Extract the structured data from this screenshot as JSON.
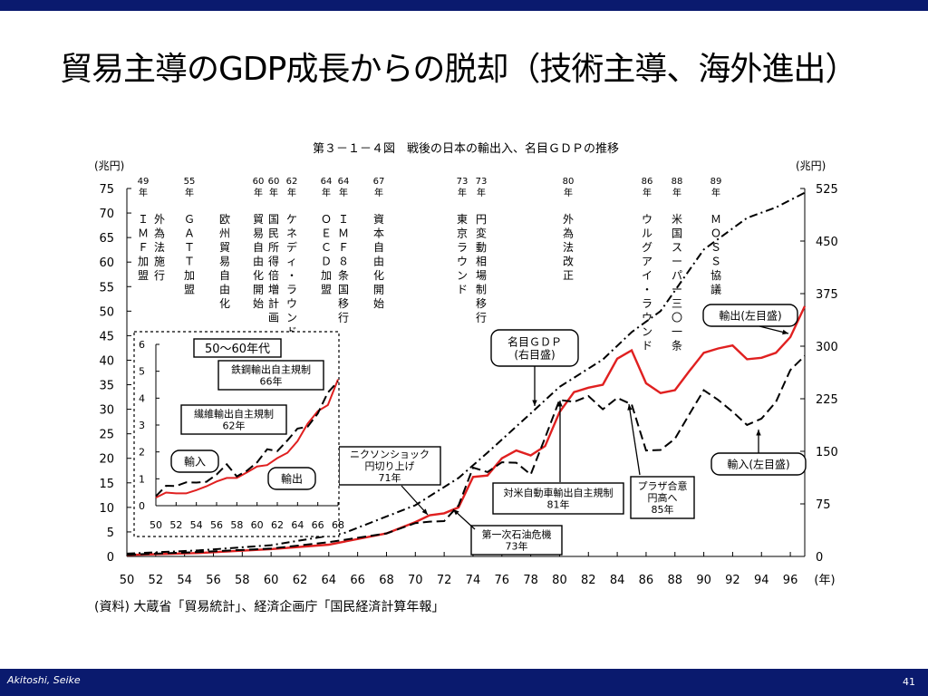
{
  "slide": {
    "title": "貿易主導のGDP成長からの脱却（技術主導、海外進出）",
    "footer_author": "Akitoshi, Seike",
    "page_number": "41"
  },
  "chart_data": {
    "type": "line",
    "title": "第３－１－４図　戦後の日本の輸出入、名目ＧＤＰの推移",
    "source": "(資料)  大蔵省「貿易統計」、経済企画庁「国民経済計算年報」",
    "left_axis_unit": "(兆円)",
    "right_axis_unit": "(兆円)",
    "x_unit": "(年)",
    "xlim": [
      1950,
      1997
    ],
    "ylim_left": [
      0,
      75
    ],
    "ylim_right": [
      0,
      525
    ],
    "x_ticks": [
      "50",
      "52",
      "54",
      "56",
      "58",
      "60",
      "62",
      "64",
      "66",
      "68",
      "70",
      "72",
      "74",
      "76",
      "78",
      "80",
      "82",
      "84",
      "86",
      "88",
      "90",
      "92",
      "94",
      "96"
    ],
    "y_ticks_left": [
      "0",
      "5",
      "10",
      "15",
      "20",
      "25",
      "30",
      "35",
      "40",
      "45",
      "50",
      "55",
      "60",
      "65",
      "70",
      "75"
    ],
    "y_ticks_right": [
      "0",
      "75",
      "150",
      "225",
      "300",
      "375",
      "450",
      "525"
    ],
    "series": [
      {
        "name": "輸出(左目盛)",
        "axis": "left",
        "color": "#e02020",
        "style": "solid",
        "x": [
          1950,
          1955,
          1960,
          1964,
          1968,
          1970,
          1971,
          1972,
          1973,
          1974,
          1975,
          1976,
          1977,
          1978,
          1979,
          1980,
          1981,
          1982,
          1983,
          1984,
          1985,
          1986,
          1987,
          1988,
          1989,
          1990,
          1991,
          1992,
          1993,
          1994,
          1995,
          1996,
          1997
        ],
        "y": [
          0.3,
          0.7,
          1.5,
          2.4,
          4.7,
          7,
          8.4,
          8.8,
          10,
          16.2,
          16.5,
          20,
          21.6,
          20.6,
          22.5,
          29.4,
          33.5,
          34.4,
          35,
          40.3,
          42,
          35.3,
          33.3,
          33.9,
          37.8,
          41.5,
          42.4,
          43,
          40.2,
          40.5,
          41.5,
          44.7,
          51
        ]
      },
      {
        "name": "輸入(左目盛)",
        "axis": "left",
        "color": "#000000",
        "style": "dash",
        "x": [
          1950,
          1955,
          1960,
          1964,
          1968,
          1970,
          1971,
          1972,
          1973,
          1974,
          1975,
          1976,
          1977,
          1978,
          1979,
          1980,
          1981,
          1982,
          1983,
          1984,
          1985,
          1986,
          1987,
          1988,
          1989,
          1990,
          1991,
          1992,
          1993,
          1994,
          1995,
          1996,
          1997
        ],
        "y": [
          0.35,
          0.9,
          1.6,
          2.9,
          4.7,
          6.8,
          7.1,
          7.2,
          10.4,
          18.1,
          17.2,
          19.2,
          19.1,
          16.7,
          24.2,
          31.9,
          31.5,
          32.7,
          30,
          32.3,
          31,
          21.6,
          21.7,
          24,
          29,
          33.9,
          31.9,
          29.5,
          26.8,
          28.1,
          31.5,
          38,
          40.9
        ]
      },
      {
        "name": "名目ＧＤＰ(右目盛)",
        "axis": "right",
        "color": "#000000",
        "style": "dashdot",
        "x": [
          1950,
          1955,
          1960,
          1965,
          1970,
          1973,
          1975,
          1978,
          1980,
          1983,
          1985,
          1987,
          1990,
          1993,
          1995,
          1997
        ],
        "y": [
          4,
          8.6,
          16,
          32.9,
          73,
          112,
          148,
          204,
          242,
          281,
          320,
          350,
          438,
          483,
          498,
          519
        ]
      }
    ],
    "inset": {
      "label": "50～60年代",
      "x_ticks": [
        "50",
        "52",
        "54",
        "56",
        "58",
        "60",
        "62",
        "64",
        "66",
        "68"
      ],
      "y_ticks": [
        "0",
        "1",
        "2",
        "3",
        "4",
        "5",
        "6"
      ],
      "series": [
        {
          "name": "輸出",
          "color": "#e02020",
          "style": "solid",
          "x": [
            1950,
            1951,
            1952,
            1953,
            1954,
            1955,
            1956,
            1957,
            1958,
            1959,
            1960,
            1961,
            1962,
            1963,
            1964,
            1965,
            1966,
            1967,
            1968
          ],
          "y": [
            0.3,
            0.49,
            0.46,
            0.46,
            0.58,
            0.72,
            0.9,
            1.03,
            1.03,
            1.24,
            1.46,
            1.51,
            1.77,
            1.97,
            2.4,
            3.05,
            3.52,
            3.74,
            4.7
          ]
        },
        {
          "name": "輸入",
          "color": "#000000",
          "style": "dash",
          "x": [
            1950,
            1951,
            1952,
            1953,
            1954,
            1955,
            1956,
            1957,
            1958,
            1959,
            1960,
            1961,
            1962,
            1963,
            1964,
            1965,
            1966,
            1967,
            1968
          ],
          "y": [
            0.35,
            0.74,
            0.73,
            0.87,
            0.86,
            0.89,
            1.16,
            1.54,
            1.09,
            1.3,
            1.61,
            2.1,
            2.03,
            2.43,
            2.87,
            2.94,
            3.43,
            4.21,
            4.62
          ]
        }
      ],
      "annotations": [
        {
          "text": [
            "鉄鋼輸出自主規制",
            "66年"
          ]
        },
        {
          "text": [
            "繊維輸出自主規制",
            "62年"
          ]
        },
        {
          "text": [
            "輸入"
          ]
        },
        {
          "text": [
            "輸出"
          ]
        }
      ]
    },
    "events": [
      {
        "year": "49\n年",
        "label": "ＩＭＦ加盟"
      },
      {
        "year": "",
        "label": "外為法施行"
      },
      {
        "year": "55\n年",
        "label": "ＧＡＴＴ加盟"
      },
      {
        "year": "",
        "label": "欧州貿易自由化"
      },
      {
        "year": "60\n年",
        "label": "貿易自由化開始"
      },
      {
        "year": "60\n年",
        "label": "国民所得倍増計画"
      },
      {
        "year": "62\n年",
        "label": "ケネディ・ラウンド"
      },
      {
        "year": "64\n年",
        "label": "ＯＥＣＤ加盟"
      },
      {
        "year": "64\n年",
        "label": "ＩＭＦ８条国移行"
      },
      {
        "year": "67\n年",
        "label": "資本自由化開始"
      },
      {
        "year": "73\n年",
        "label": "東京ラウンド"
      },
      {
        "year": "73\n年",
        "label": "円変動相場制移行"
      },
      {
        "year": "80\n年",
        "label": "外為法改正"
      },
      {
        "year": "86\n年",
        "label": "ウルグアイ・ラウンド"
      },
      {
        "year": "88\n年",
        "label": "米国スーパー三〇一条"
      },
      {
        "year": "89\n年",
        "label": "ＭＯＳＳ協議"
      }
    ],
    "annotations": [
      {
        "text": [
          "名目ＧＤＰ",
          "(右目盛)"
        ]
      },
      {
        "text": [
          "輸出(左目盛)"
        ]
      },
      {
        "text": [
          "輸入(左目盛)"
        ]
      },
      {
        "text": [
          "ニクソンショック",
          "円切り上げ",
          "71年"
        ]
      },
      {
        "text": [
          "第一次石油危機",
          "73年"
        ]
      },
      {
        "text": [
          "対米自動車輸出自主規制",
          "81年"
        ]
      },
      {
        "text": [
          "プラザ合意",
          "円高へ",
          "85年"
        ]
      }
    ]
  }
}
